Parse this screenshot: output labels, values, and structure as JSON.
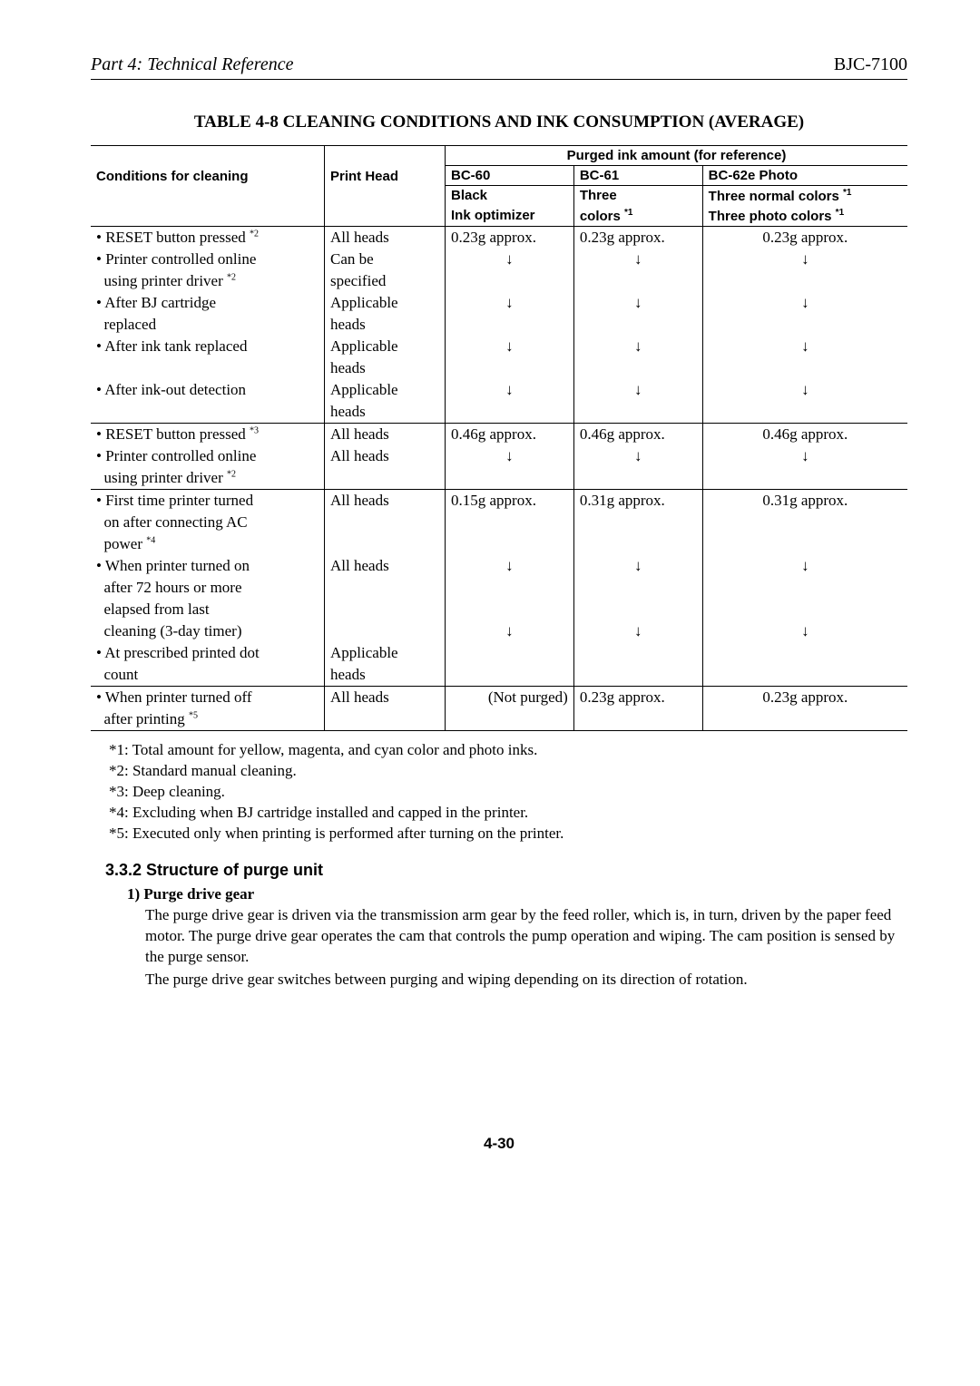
{
  "header": {
    "left": "Part 4: Technical Reference",
    "right": "BJC-7100"
  },
  "tableTitle": "TABLE 4-8 CLEANING CONDITIONS AND INK CONSUMPTION (AVERAGE)",
  "head": {
    "conditions": "Conditions for cleaning",
    "printHead": "Print Head",
    "purged": "Purged ink amount (for reference)",
    "bc60": "BC-60",
    "bc61": "BC-61",
    "bc62e": "BC-62e Photo",
    "black": "Black",
    "three": "Three",
    "normal": "Three normal colors ",
    "inkopt": "Ink optimizer",
    "colors": "colors ",
    "photo": "Three photo colors ",
    "star1": "*1"
  },
  "g1": {
    "r1c": "• RESET button pressed ",
    "r1sup": "*2",
    "r1h": "All heads",
    "r1v1": "0.23g approx.",
    "r1v2": "0.23g approx.",
    "r1v3": "0.23g approx.",
    "r2c": "• Printer controlled online",
    "r2h": "Can be",
    "r3c": "  using printer driver ",
    "r3sup": "*2",
    "r3h": "specified",
    "r4c": "• After BJ cartridge",
    "r4h": "Applicable",
    "r5c": "  replaced",
    "r5h": "heads",
    "r6c": "• After ink tank replaced",
    "r6h": "Applicable",
    "r7h": "heads",
    "r8c": "• After ink-out detection",
    "r8h": "Applicable",
    "r9h": "heads"
  },
  "g2": {
    "r1c": "• RESET button pressed ",
    "r1sup": "*3",
    "r1h": "All heads",
    "r1v1": "0.46g approx.",
    "r1v2": "0.46g approx.",
    "r1v3": "0.46g approx.",
    "r2c": "• Printer controlled online",
    "r2h": "All heads",
    "r3c": "  using printer driver ",
    "r3sup": "*2"
  },
  "g3": {
    "r1c": "• First time printer turned",
    "r1h": "All heads",
    "r1v1": "0.15g approx.",
    "r1v2": "0.31g approx.",
    "r1v3": "0.31g approx.",
    "r2c": "  on after connecting AC",
    "r3c": "  power ",
    "r3sup": "*4",
    "r4c": "• When printer turned on",
    "r4h": "All heads",
    "r5c": "  after 72 hours or more",
    "r6c": "  elapsed from last",
    "r7c": "  cleaning (3-day timer)",
    "r8c": "• At prescribed printed dot",
    "r8h": "Applicable",
    "r9c": "  count",
    "r9h": "heads"
  },
  "g4": {
    "r1c": "• When printer turned off",
    "r1h": "All heads",
    "r1v1": "(Not purged)",
    "r1v2": "0.23g approx.",
    "r1v3": "0.23g approx.",
    "r2c": "  after printing ",
    "r2sup": "*5"
  },
  "arrow": "↓",
  "notes": {
    "n1": "*1: Total amount for yellow, magenta, and cyan color and photo inks.",
    "n2": "*2: Standard manual cleaning.",
    "n3": "*3: Deep cleaning.",
    "n4": "*4: Excluding when BJ cartridge installed and capped in the printer.",
    "n5": "*5: Executed only when printing is performed after turning on the printer."
  },
  "section": {
    "heading": "3.3.2 Structure of purge unit",
    "sub": "1) Purge drive gear",
    "p1": "The purge drive gear is driven via the transmission arm gear by the feed roller, which is, in turn, driven by the paper feed motor.  The purge drive gear operates the cam that controls the pump operation and wiping.  The cam position is sensed by the purge sensor.",
    "p2": "The purge drive gear switches between purging and wiping depending on its direction of rotation."
  },
  "pageNum": "4-30"
}
